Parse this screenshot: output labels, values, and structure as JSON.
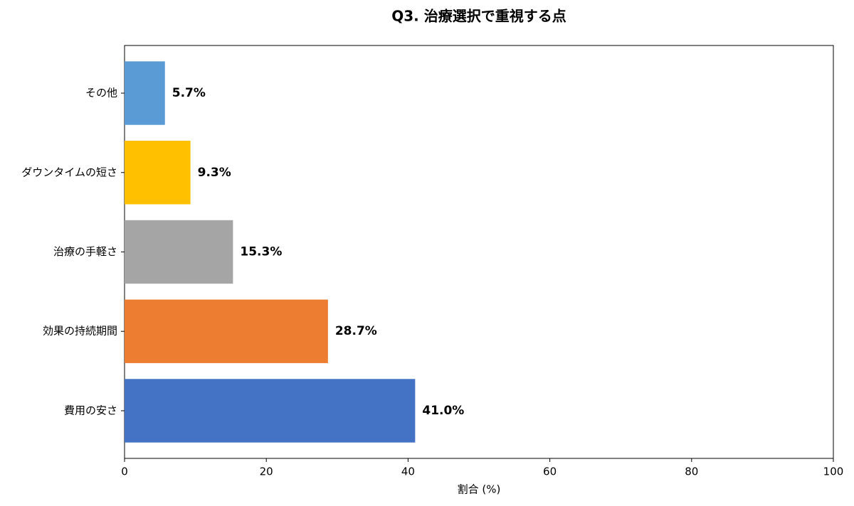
{
  "chart_data": {
    "type": "barh",
    "title": "Q3. 治療選択で重視する点",
    "x_label": "割合 (%)",
    "categories": [
      "費用の安さ",
      "効果の持続期間",
      "治療の手軽さ",
      "ダウンタイムの短さ",
      "その他"
    ],
    "values": [
      41.0,
      28.7,
      15.3,
      9.3,
      5.7
    ],
    "value_labels": [
      "41.0%",
      "28.7%",
      "15.3%",
      "9.3%",
      "5.7%"
    ],
    "colors": [
      "#4472c4",
      "#ed7d31",
      "#a5a5a5",
      "#ffc000",
      "#5b9bd5"
    ],
    "xlim": [
      0,
      100
    ],
    "xticks": [
      0,
      20,
      40,
      60,
      80,
      100
    ]
  }
}
